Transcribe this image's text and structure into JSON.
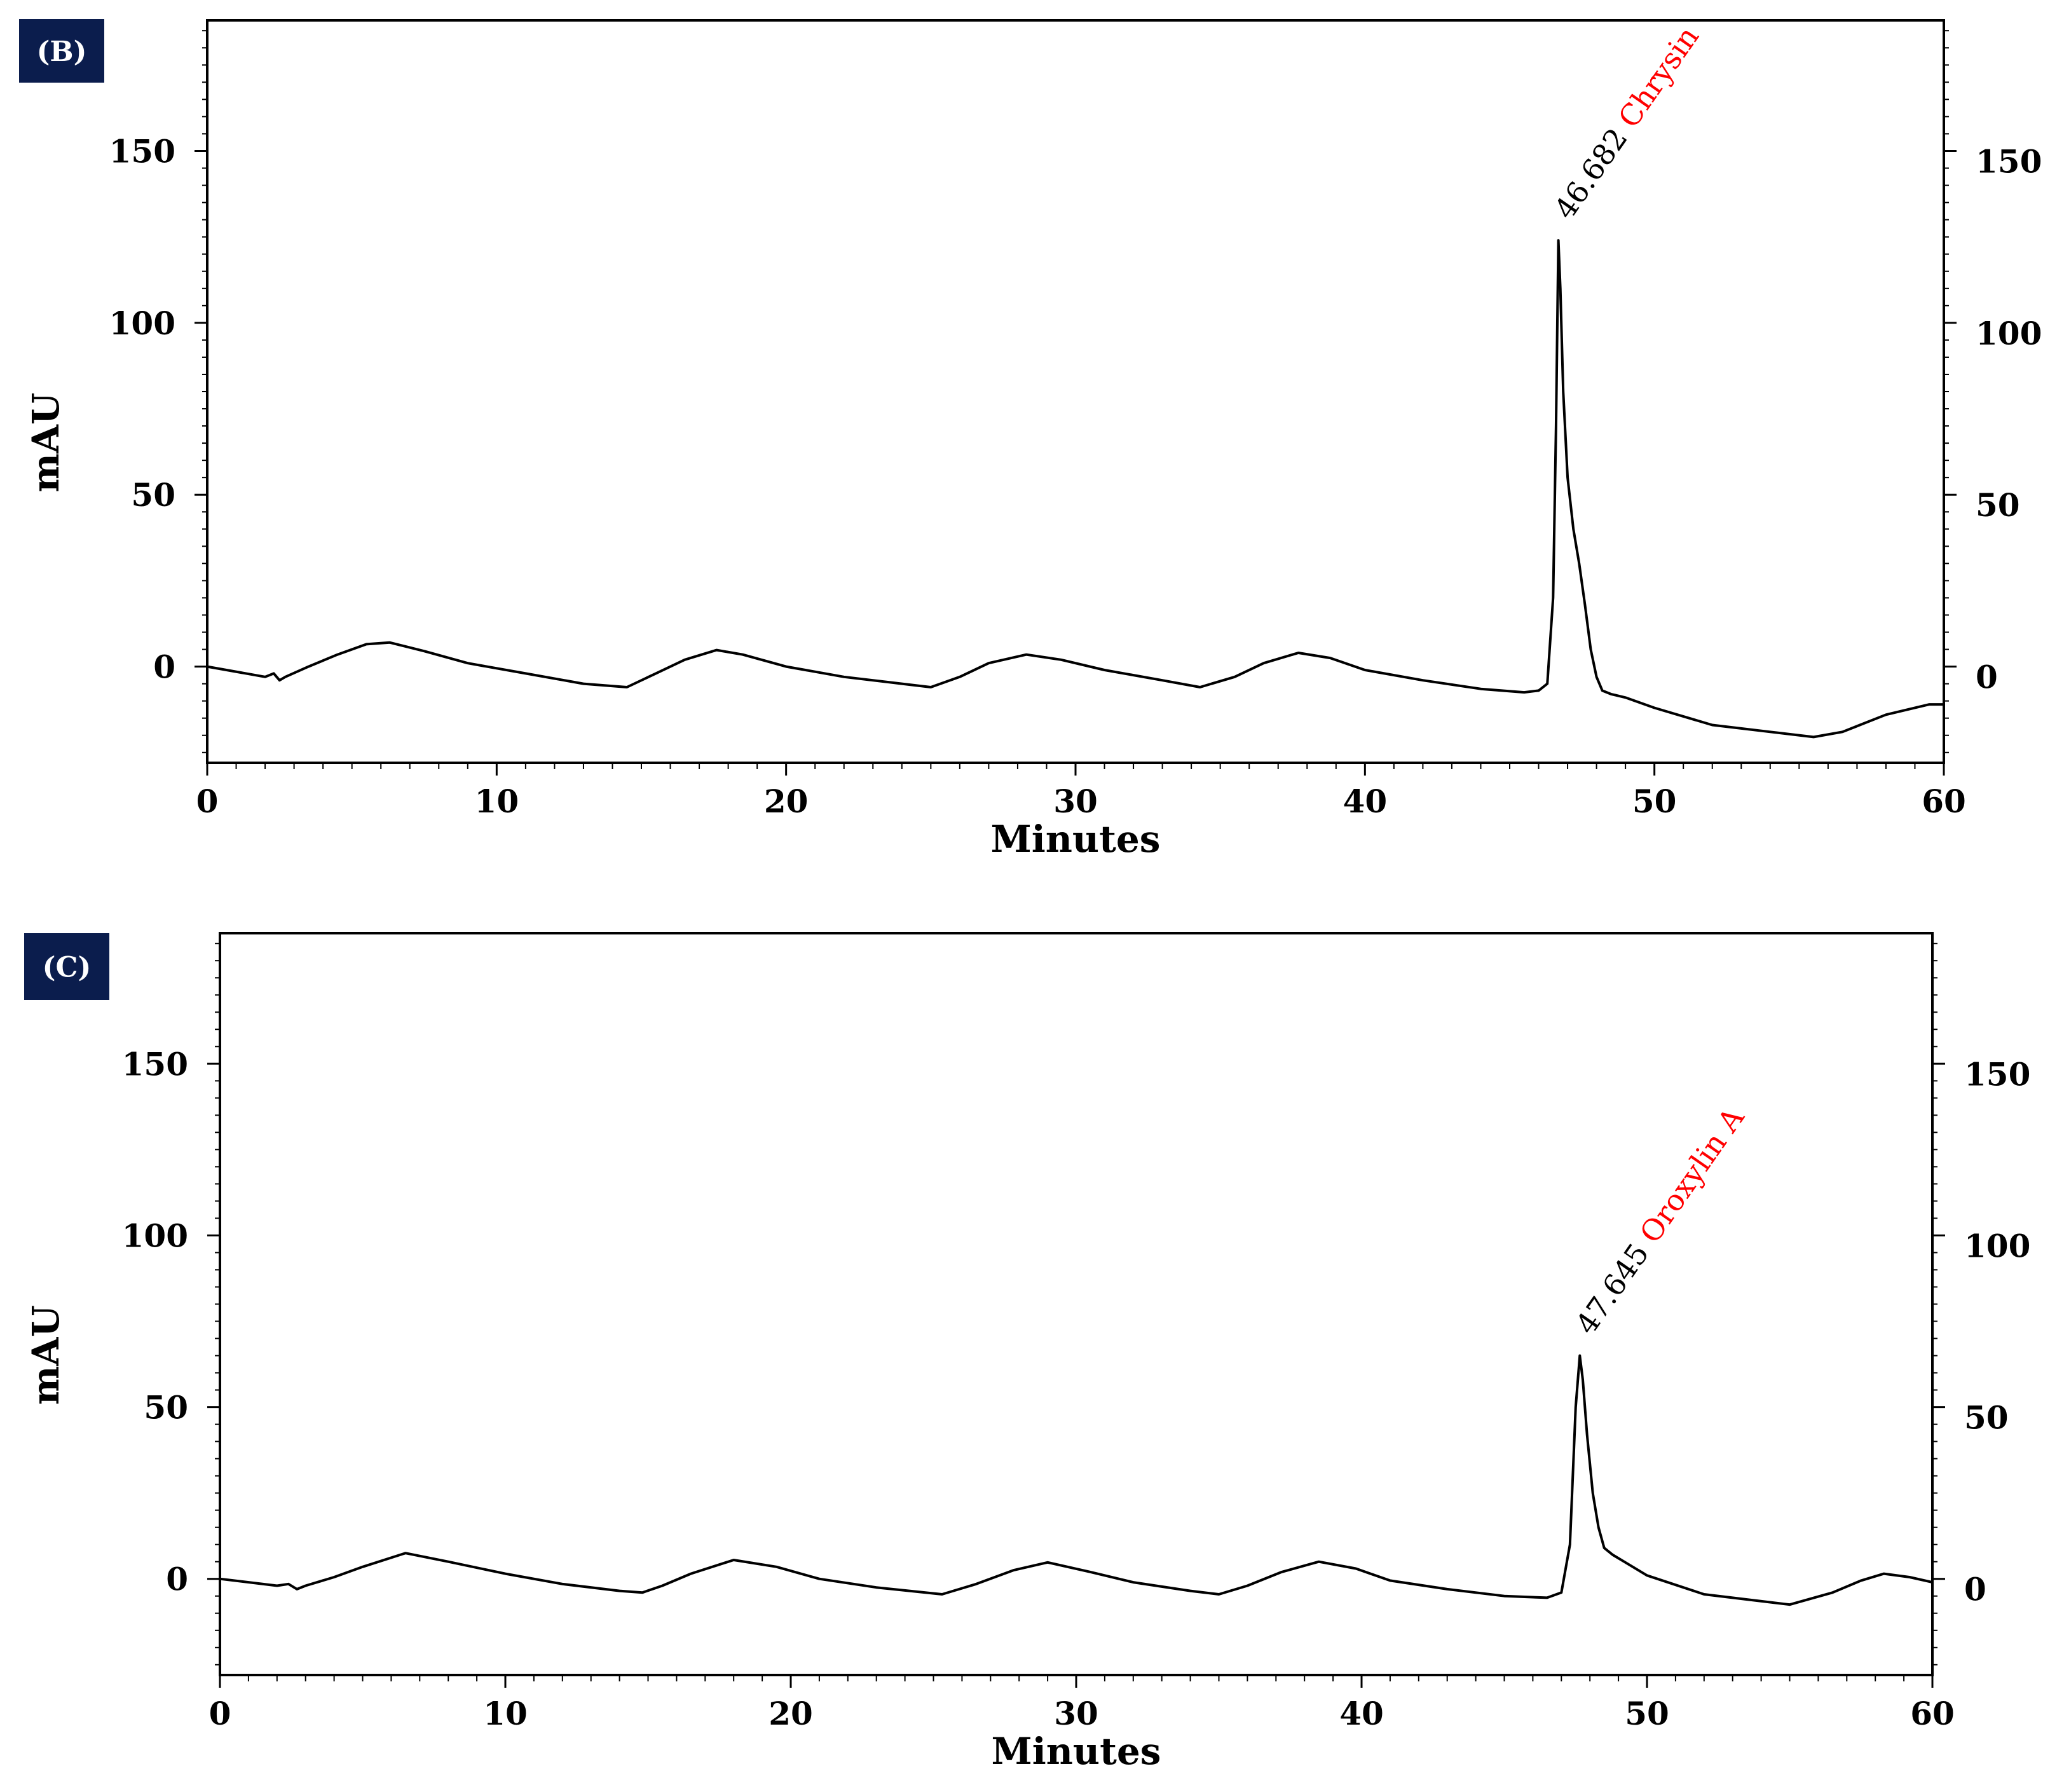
{
  "chart_data": [
    {
      "type": "line",
      "panel_label": "(B)",
      "xlabel": "Minutes",
      "ylabel": "mAU",
      "xlim": [
        0,
        60
      ],
      "ylim": [
        -28,
        188
      ],
      "x_ticks": [
        0,
        10,
        20,
        30,
        40,
        50,
        60
      ],
      "y_ticks": [
        0,
        50,
        100,
        150
      ],
      "right_axis_ticks": [
        0,
        50,
        100,
        150
      ],
      "grid": false,
      "peak": {
        "retention_time": "46.682",
        "name": "Chrysin",
        "x": 46.682,
        "y": 124
      },
      "series": [
        {
          "color": "#000000",
          "x": [
            0,
            2,
            2.3,
            2.5,
            2.7,
            3.5,
            4.5,
            5.5,
            6.3,
            7.5,
            9,
            11,
            13,
            14.5,
            15.5,
            16.5,
            17.6,
            18.5,
            20,
            22,
            24,
            25,
            26,
            27,
            28.3,
            29.5,
            31,
            33,
            34.3,
            35.5,
            36.5,
            37.7,
            38.8,
            40,
            42,
            44,
            45.5,
            46.0,
            46.3,
            46.5,
            46.6,
            46.682,
            46.75,
            46.85,
            47.0,
            47.2,
            47.4,
            47.6,
            47.8,
            48.0,
            48.2,
            48.5,
            49,
            50,
            52,
            54,
            55.5,
            56.5,
            58,
            59.5,
            60
          ],
          "y": [
            0,
            -3,
            -2,
            -4,
            -3,
            0,
            3.5,
            6.5,
            7,
            4.5,
            1,
            -2,
            -5,
            -6,
            -2,
            2,
            4.8,
            3.5,
            0,
            -3,
            -5,
            -6,
            -3,
            1,
            3.5,
            2,
            -1,
            -4,
            -6,
            -3,
            1,
            4,
            2.5,
            -1,
            -4,
            -6.5,
            -7.5,
            -7,
            -5,
            20,
            70,
            124,
            110,
            80,
            55,
            40,
            30,
            18,
            5,
            -3,
            -7,
            -8,
            -9,
            -12,
            -17,
            -19,
            -20.5,
            -19,
            -14,
            -11,
            -11
          ]
        }
      ]
    },
    {
      "type": "line",
      "panel_label": "(C)",
      "xlabel": "Minutes",
      "ylabel": "mAU",
      "xlim": [
        0,
        60
      ],
      "ylim": [
        -28,
        188
      ],
      "x_ticks": [
        0,
        10,
        20,
        30,
        40,
        50,
        60
      ],
      "y_ticks": [
        0,
        50,
        100,
        150
      ],
      "right_axis_ticks": [
        0,
        50,
        100,
        150
      ],
      "grid": false,
      "peak": {
        "retention_time": "47.645",
        "name": "Oroxylin A",
        "x": 47.645,
        "y": 65
      },
      "series": [
        {
          "color": "#000000",
          "x": [
            0,
            2,
            2.4,
            2.7,
            3.0,
            4,
            5,
            6.5,
            8,
            10,
            12,
            14,
            14.8,
            15.5,
            16.5,
            18,
            19.5,
            21,
            23,
            25.3,
            26.5,
            27.8,
            29,
            30.5,
            32,
            34,
            35,
            36,
            37.2,
            38.5,
            39.8,
            41,
            43,
            45,
            46.5,
            47.0,
            47.3,
            47.5,
            47.645,
            47.75,
            47.9,
            48.1,
            48.3,
            48.5,
            48.8,
            49.2,
            50,
            52,
            53.5,
            55,
            56.5,
            57.5,
            58.3,
            59.2,
            60
          ],
          "y": [
            0,
            -2,
            -1.5,
            -3,
            -2,
            0.5,
            3.5,
            7.5,
            5,
            1.5,
            -1.5,
            -3.5,
            -4,
            -2,
            1.5,
            5.5,
            3.5,
            0,
            -2.5,
            -4.5,
            -1.5,
            2.5,
            4.8,
            2,
            -1,
            -3.5,
            -4.5,
            -2,
            2,
            5,
            3,
            -0.5,
            -3,
            -5,
            -5.5,
            -4,
            10,
            50,
            65,
            58,
            42,
            25,
            15,
            9,
            7,
            5,
            1,
            -4.5,
            -6,
            -7.5,
            -4,
            -0.5,
            1.5,
            0.5,
            -1
          ]
        }
      ]
    }
  ]
}
